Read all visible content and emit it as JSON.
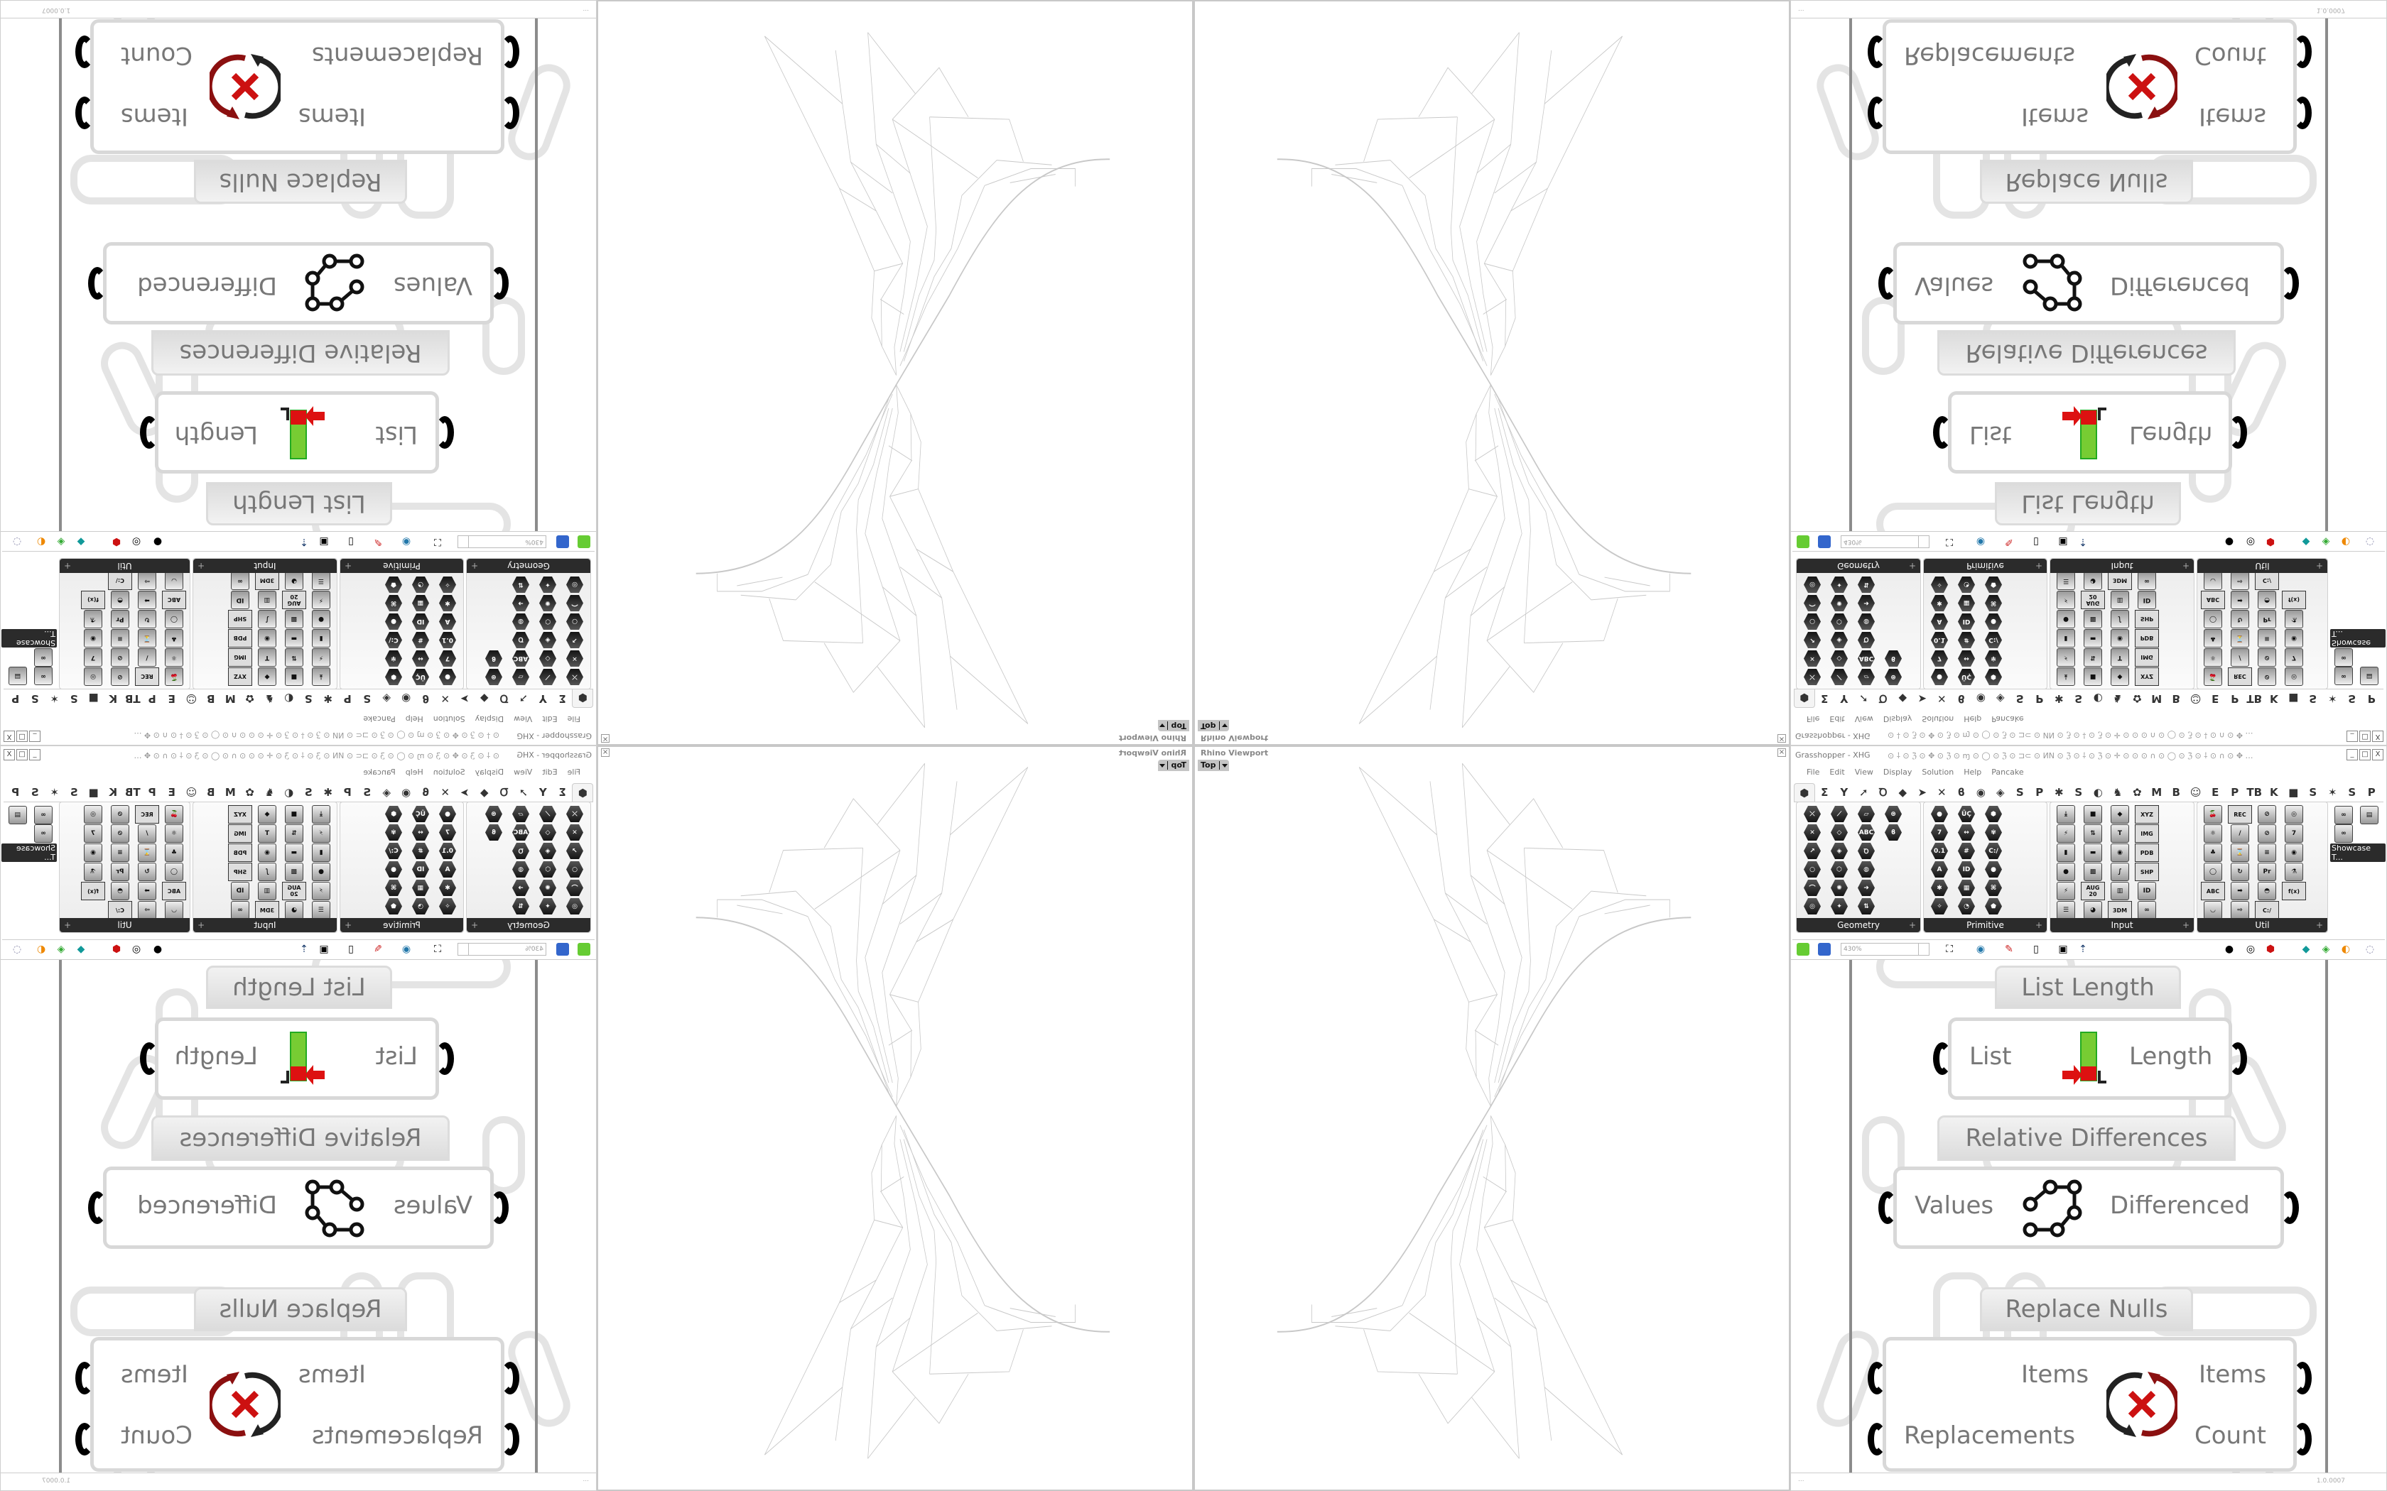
{
  "viewport": {
    "title": "Rhino Viewport",
    "view_label": "Top",
    "close_icon": "close-icon"
  },
  "grasshopper": {
    "title": "Grasshopper - XHG",
    "doc_glyphs": "⊙ ⸸ ⊙ ℨ ⊙ ✥ ⊙ ℨ ⊙ ɱ ⊙ ◯ ⊙ ℨ ⊙ ⊐⊂ ⊙ ИN ⊙ ℨ ⊙ ⸸ ⊙ ℨ ⊙ ✛ ⊙ ⊙ ⊙ ∩ ⊙ ◯ ⊙ ℨ ⊙ ⸸ ⊙ ∩ ⊙ ✥ …",
    "window_buttons": [
      "_",
      "□",
      "X"
    ],
    "menu": [
      "File",
      "Edit",
      "View",
      "Display",
      "Solution",
      "Help",
      "Pancake"
    ],
    "tabs": [
      "⬢",
      "Σ",
      "Y",
      "➚",
      "Ꝺ",
      "◆",
      "➤",
      "✕",
      "ϐ",
      "◉",
      "◈",
      "S",
      "P",
      "✱",
      "S",
      "◐",
      "♞",
      "✿",
      "M",
      "B",
      "☺",
      "E",
      "P",
      "TB",
      "K",
      "■",
      "S",
      "✶",
      "S",
      "P"
    ],
    "panels": [
      {
        "label": "Geometry",
        "icons": [
          "⤫",
          "✕",
          "↗",
          "○",
          "⌒",
          "◎",
          "⟋",
          "◇",
          "◈",
          "⬡",
          "✺",
          "✦",
          "▱",
          "ABC",
          "Ꝺ",
          "◍",
          "➜",
          "⇅",
          "⊛",
          "ϐ"
        ]
      },
      {
        "label": "Primitive",
        "icons": [
          "●",
          "7",
          "0.1",
          "A",
          "✱",
          "✧",
          "ÜÇ",
          "↔",
          "#",
          "ID",
          "▦",
          "◔",
          "⬢",
          "✾",
          "C:/",
          "●",
          "⌘",
          "⬟"
        ]
      },
      {
        "label": "Input",
        "icons": [
          "⤓",
          "⚡",
          "▮",
          "●",
          "⚡",
          "☰",
          "■",
          "⇅",
          "▬",
          "▩",
          "AUG 20",
          "◕",
          "◆",
          "T",
          "◉",
          "∫",
          "▥",
          "3DM",
          "XYZ",
          "IMG",
          "PDB",
          "SHP",
          "ID",
          "∞"
        ]
      },
      {
        "label": "Util",
        "icons": [
          "🍒",
          "⚛",
          "♣",
          "◯",
          "ABC",
          "◡",
          "REC",
          "/",
          "⌛",
          "↻",
          "➡",
          "⇨",
          "⊘",
          "⊘",
          "≡",
          "Pr",
          "◓",
          "C:/",
          "◎",
          "7",
          "◉",
          "⚗",
          "f(x)"
        ]
      }
    ],
    "panel_expand": "+",
    "showcase_label": "Showcase T...",
    "toolbar": {
      "zoom": "430%"
    },
    "components": {
      "list_length": {
        "label": "List Length",
        "input": "List",
        "output": "Length"
      },
      "relative_differences": {
        "label": "Relative Differences",
        "input": "Values",
        "output": "Differenced"
      },
      "replace_nulls": {
        "label": "Replace Nulls",
        "input1": "Items",
        "input2": "Replacements",
        "output1": "Items",
        "output2": "Count"
      }
    },
    "status": {
      "left": "...",
      "version": "1.0.0007"
    }
  }
}
